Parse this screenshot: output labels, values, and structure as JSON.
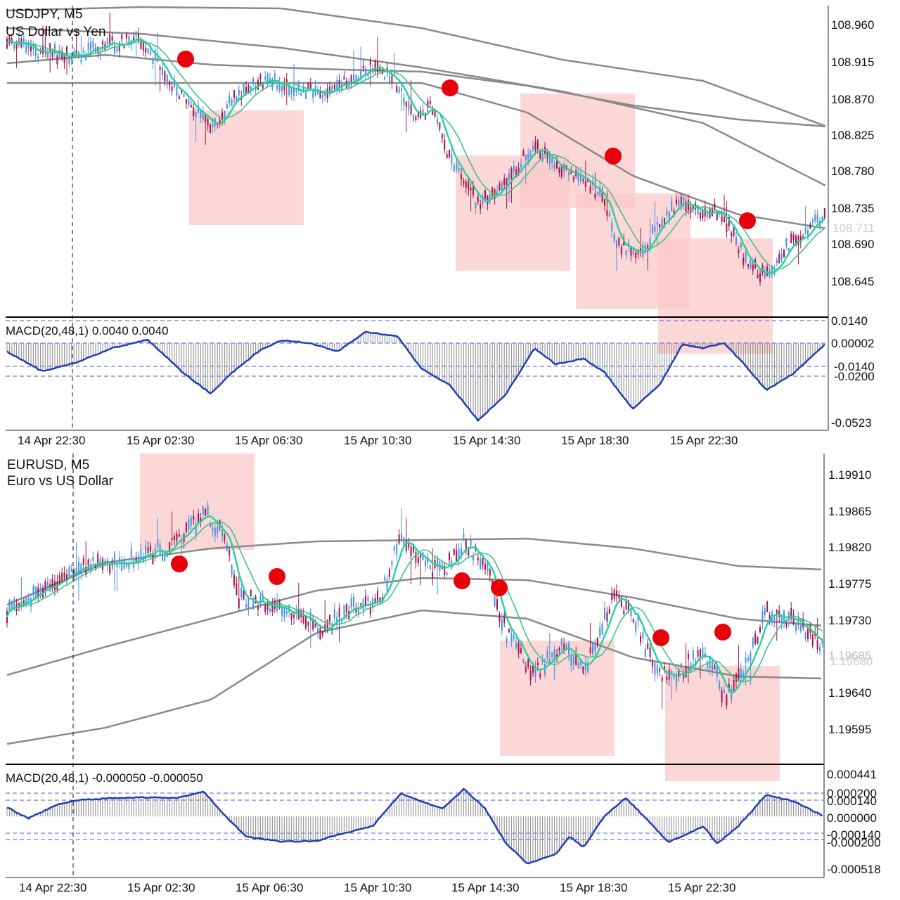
{
  "charts": [
    {
      "symbol_line": "USDJPY, M5",
      "description": "US Dollar vs Yen",
      "price_ticks": [
        "108.960",
        "108.915",
        "108.870",
        "108.825",
        "108.780",
        "108.735",
        "108.690",
        "108.645"
      ],
      "current_price": "108.711",
      "indicator_label": "MACD(20,48,1) 0.0040 0.0040",
      "indicator_ticks": [
        "0.0140",
        "0.00002",
        "-0.0140",
        "-0.0200",
        "-0.0523"
      ],
      "time_labels": [
        "14 Apr 22:30",
        "15 Apr 02:30",
        "15 Apr 06:30",
        "15 Apr 10:30",
        "15 Apr 14:30",
        "15 Apr 18:30",
        "15 Apr 22:30"
      ]
    },
    {
      "symbol_line": "EURUSD, M5",
      "description": "Euro vs US Dollar",
      "price_ticks": [
        "1.19910",
        "1.19865",
        "1.19820",
        "1.19775",
        "1.19730",
        "1.19685",
        "1.19640",
        "1.19595"
      ],
      "current_price": "1.19680",
      "indicator_label": "MACD(20,48,1) -0.000050 -0.000050",
      "indicator_ticks": [
        "0.000441",
        "0.000200",
        "0.000140",
        "0.000000",
        "-0.000140",
        "-0.000200",
        "-0.000518"
      ],
      "time_labels": [
        "14 Apr 22:30",
        "15 Apr 02:30",
        "15 Apr 06:30",
        "15 Apr 10:30",
        "15 Apr 14:30",
        "15 Apr 18:30",
        "15 Apr 22:30"
      ]
    }
  ],
  "colors": {
    "bull_candle": "#4a90e2",
    "bear_candle": "#a0144f",
    "ma_fast": "#1fd39a",
    "ma_slow": "#46c08a",
    "envelope": "#8a8a8a",
    "macd_line": "#1f3fb4",
    "histogram": "#8c8c8c",
    "zone_fill": "#fbcaca",
    "signal_dot": "#e8000b",
    "level_line": "#4a5ad8"
  }
}
